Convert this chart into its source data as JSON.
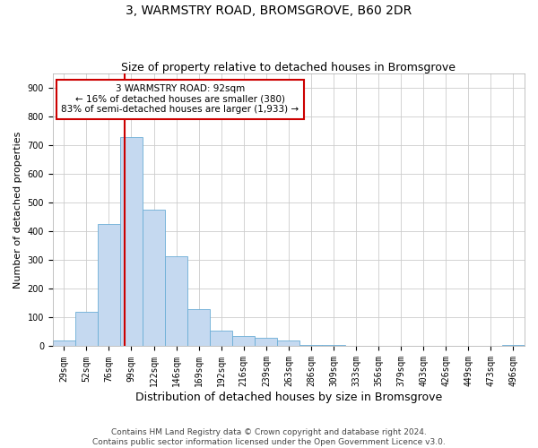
{
  "title": "3, WARMSTRY ROAD, BROMSGROVE, B60 2DR",
  "subtitle": "Size of property relative to detached houses in Bromsgrove",
  "xlabel": "Distribution of detached houses by size in Bromsgrove",
  "ylabel": "Number of detached properties",
  "bin_labels": [
    "29sqm",
    "52sqm",
    "76sqm",
    "99sqm",
    "122sqm",
    "146sqm",
    "169sqm",
    "192sqm",
    "216sqm",
    "239sqm",
    "263sqm",
    "286sqm",
    "309sqm",
    "333sqm",
    "356sqm",
    "379sqm",
    "403sqm",
    "426sqm",
    "449sqm",
    "473sqm",
    "496sqm"
  ],
  "bar_heights": [
    20,
    120,
    425,
    730,
    475,
    315,
    130,
    55,
    35,
    30,
    20,
    5,
    5,
    0,
    0,
    0,
    0,
    0,
    0,
    0,
    5
  ],
  "bar_color": "#c5d9f0",
  "bar_edgecolor": "#6baed6",
  "vline_x_idx": 2.72,
  "annotation_text": "3 WARMSTRY ROAD: 92sqm\n← 16% of detached houses are smaller (380)\n83% of semi-detached houses are larger (1,933) →",
  "annotation_box_color": "#ffffff",
  "annotation_box_edgecolor": "#cc0000",
  "vline_color": "#cc0000",
  "ylim": [
    0,
    950
  ],
  "yticks": [
    0,
    100,
    200,
    300,
    400,
    500,
    600,
    700,
    800,
    900
  ],
  "footer": "Contains HM Land Registry data © Crown copyright and database right 2024.\nContains public sector information licensed under the Open Government Licence v3.0.",
  "title_fontsize": 10,
  "subtitle_fontsize": 9,
  "xlabel_fontsize": 9,
  "ylabel_fontsize": 8,
  "tick_fontsize": 7,
  "annotation_fontsize": 7.5,
  "footer_fontsize": 6.5
}
